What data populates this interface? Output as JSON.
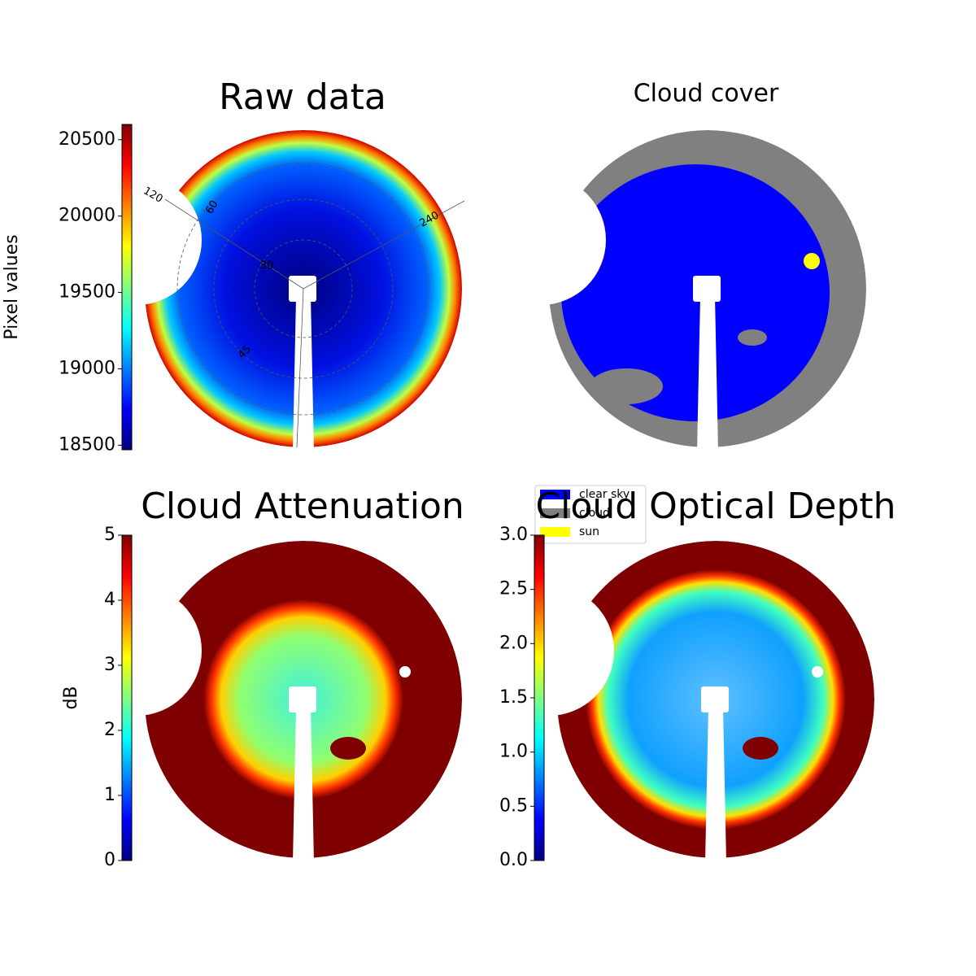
{
  "chart_data": [
    {
      "type": "heatmap",
      "title": "Raw data",
      "colormap": "jet",
      "clabel": "Pixel values",
      "clim": [
        18470,
        20600
      ],
      "cticks": [
        18500,
        19000,
        19500,
        20000,
        20500
      ],
      "polar_labels": [
        "120",
        "60",
        "240",
        "30",
        "45"
      ]
    },
    {
      "type": "classification",
      "title": "Cloud cover",
      "legend": [
        {
          "name": "clear sky",
          "color": "#0000ff"
        },
        {
          "name": "cloud",
          "color": "#808080"
        },
        {
          "name": "sun",
          "color": "#ffff00"
        }
      ]
    },
    {
      "type": "heatmap",
      "title": "Cloud Attenuation",
      "colormap": "jet",
      "clabel": "dB",
      "clim": [
        0,
        5
      ],
      "cticks": [
        0,
        1,
        2,
        3,
        4,
        5
      ]
    },
    {
      "type": "heatmap",
      "title": "Cloud Optical Depth",
      "colormap": "jet",
      "clim": [
        0,
        3
      ],
      "cticks": [
        {
          "value": 0,
          "label": "0.0"
        },
        {
          "value": 0.5,
          "label": "0.5"
        },
        {
          "value": 1,
          "label": "1.0"
        },
        {
          "value": 1.5,
          "label": "1.5"
        },
        {
          "value": 2,
          "label": "2.0"
        },
        {
          "value": 2.5,
          "label": "2.5"
        },
        {
          "value": 3,
          "label": "3.0"
        }
      ]
    }
  ]
}
